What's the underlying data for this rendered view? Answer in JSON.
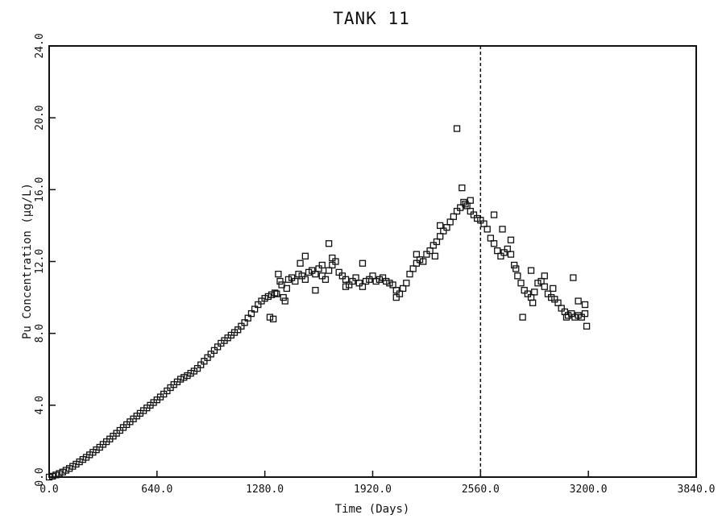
{
  "chart_data": {
    "type": "scatter",
    "title": "TANK 11",
    "xlabel": "Time (Days)",
    "ylabel": "Pu Concentration (µg/L)",
    "xlim": [
      0,
      3840
    ],
    "ylim": [
      0,
      24
    ],
    "x_ticks": [
      "0.0",
      "640.0",
      "1280.0",
      "1920.0",
      "2560.0",
      "3200.0",
      "3840.0"
    ],
    "y_ticks": [
      "0.0",
      "4.0",
      "8.0",
      "12.0",
      "16.0",
      "20.0",
      "24.0"
    ],
    "grid": false,
    "marker": "open-square",
    "reference_line": {
      "x": 2560,
      "style": "dashed"
    },
    "series": [
      {
        "points": [
          [
            0,
            0
          ],
          [
            20,
            0.05
          ],
          [
            40,
            0.12
          ],
          [
            60,
            0.2
          ],
          [
            80,
            0.28
          ],
          [
            100,
            0.38
          ],
          [
            120,
            0.48
          ],
          [
            140,
            0.6
          ],
          [
            160,
            0.72
          ],
          [
            180,
            0.85
          ],
          [
            200,
            0.98
          ],
          [
            220,
            1.1
          ],
          [
            240,
            1.24
          ],
          [
            260,
            1.38
          ],
          [
            280,
            1.52
          ],
          [
            300,
            1.66
          ],
          [
            320,
            1.82
          ],
          [
            340,
            1.97
          ],
          [
            360,
            2.12
          ],
          [
            380,
            2.28
          ],
          [
            400,
            2.44
          ],
          [
            420,
            2.6
          ],
          [
            440,
            2.76
          ],
          [
            460,
            2.92
          ],
          [
            480,
            3.08
          ],
          [
            500,
            3.24
          ],
          [
            520,
            3.4
          ],
          [
            540,
            3.55
          ],
          [
            560,
            3.7
          ],
          [
            580,
            3.85
          ],
          [
            600,
            4.0
          ],
          [
            620,
            4.15
          ],
          [
            640,
            4.3
          ],
          [
            660,
            4.46
          ],
          [
            680,
            4.62
          ],
          [
            700,
            4.8
          ],
          [
            720,
            4.98
          ],
          [
            740,
            5.15
          ],
          [
            760,
            5.3
          ],
          [
            780,
            5.45
          ],
          [
            800,
            5.55
          ],
          [
            820,
            5.65
          ],
          [
            840,
            5.78
          ],
          [
            860,
            5.9
          ],
          [
            880,
            6.05
          ],
          [
            900,
            6.25
          ],
          [
            920,
            6.45
          ],
          [
            940,
            6.65
          ],
          [
            960,
            6.85
          ],
          [
            980,
            7.05
          ],
          [
            1000,
            7.25
          ],
          [
            1020,
            7.45
          ],
          [
            1040,
            7.6
          ],
          [
            1060,
            7.75
          ],
          [
            1080,
            7.9
          ],
          [
            1100,
            8.05
          ],
          [
            1120,
            8.2
          ],
          [
            1140,
            8.4
          ],
          [
            1160,
            8.6
          ],
          [
            1180,
            8.85
          ],
          [
            1200,
            9.1
          ],
          [
            1220,
            9.35
          ],
          [
            1240,
            9.6
          ],
          [
            1260,
            9.8
          ],
          [
            1280,
            9.95
          ],
          [
            1300,
            10.05
          ],
          [
            1320,
            10.15
          ],
          [
            1340,
            10.25
          ],
          [
            1310,
            8.9
          ],
          [
            1330,
            8.8
          ],
          [
            1350,
            10.2
          ],
          [
            1360,
            11.3
          ],
          [
            1370,
            10.9
          ],
          [
            1380,
            10.7
          ],
          [
            1390,
            10.0
          ],
          [
            1400,
            9.8
          ],
          [
            1410,
            10.5
          ],
          [
            1420,
            11.0
          ],
          [
            1440,
            11.1
          ],
          [
            1460,
            10.9
          ],
          [
            1480,
            11.3
          ],
          [
            1500,
            11.2
          ],
          [
            1520,
            11.0
          ],
          [
            1540,
            11.4
          ],
          [
            1560,
            11.5
          ],
          [
            1580,
            11.3
          ],
          [
            1600,
            11.6
          ],
          [
            1620,
            11.2
          ],
          [
            1640,
            11.0
          ],
          [
            1660,
            11.5
          ],
          [
            1680,
            11.8
          ],
          [
            1700,
            12.0
          ],
          [
            1720,
            11.4
          ],
          [
            1740,
            11.2
          ],
          [
            1760,
            11.0
          ],
          [
            1780,
            10.7
          ],
          [
            1800,
            10.9
          ],
          [
            1820,
            11.1
          ],
          [
            1840,
            10.8
          ],
          [
            1860,
            10.6
          ],
          [
            1880,
            10.9
          ],
          [
            1900,
            11.0
          ],
          [
            1920,
            11.2
          ],
          [
            1940,
            10.9
          ],
          [
            1960,
            11.0
          ],
          [
            1980,
            11.1
          ],
          [
            2000,
            10.9
          ],
          [
            2020,
            10.8
          ],
          [
            2040,
            10.7
          ],
          [
            2060,
            10.4
          ],
          [
            2080,
            10.2
          ],
          [
            2100,
            10.5
          ],
          [
            2120,
            10.8
          ],
          [
            2140,
            11.3
          ],
          [
            2160,
            11.6
          ],
          [
            2180,
            11.9
          ],
          [
            2200,
            12.1
          ],
          [
            2220,
            12.0
          ],
          [
            2240,
            12.4
          ],
          [
            2260,
            12.6
          ],
          [
            2280,
            12.9
          ],
          [
            2300,
            13.1
          ],
          [
            2320,
            13.4
          ],
          [
            2340,
            13.7
          ],
          [
            2360,
            13.9
          ],
          [
            2380,
            14.2
          ],
          [
            2400,
            14.5
          ],
          [
            2420,
            14.8
          ],
          [
            2440,
            15.0
          ],
          [
            2460,
            15.3
          ],
          [
            2480,
            15.1
          ],
          [
            2500,
            14.8
          ],
          [
            2520,
            14.6
          ],
          [
            2540,
            14.4
          ],
          [
            2560,
            14.3
          ],
          [
            2580,
            14.1
          ],
          [
            2600,
            13.8
          ],
          [
            2620,
            13.3
          ],
          [
            2640,
            13.0
          ],
          [
            2660,
            12.6
          ],
          [
            2680,
            12.3
          ],
          [
            2700,
            12.5
          ],
          [
            2720,
            12.7
          ],
          [
            2740,
            12.4
          ],
          [
            2760,
            11.8
          ],
          [
            2780,
            11.2
          ],
          [
            2800,
            10.8
          ],
          [
            2820,
            10.4
          ],
          [
            2840,
            10.2
          ],
          [
            2860,
            10.0
          ],
          [
            2880,
            10.3
          ],
          [
            2900,
            10.8
          ],
          [
            2920,
            10.9
          ],
          [
            2940,
            10.6
          ],
          [
            2960,
            10.2
          ],
          [
            2980,
            10.0
          ],
          [
            3000,
            9.9
          ],
          [
            3020,
            9.7
          ],
          [
            3040,
            9.4
          ],
          [
            3060,
            9.2
          ],
          [
            3080,
            9.0
          ],
          [
            3100,
            9.1
          ],
          [
            3120,
            8.9
          ],
          [
            3140,
            9.0
          ],
          [
            3160,
            8.9
          ],
          [
            3180,
            9.1
          ],
          [
            1490,
            11.9
          ],
          [
            1520,
            12.3
          ],
          [
            1620,
            11.8
          ],
          [
            1660,
            13.0
          ],
          [
            1680,
            12.2
          ],
          [
            1580,
            10.4
          ],
          [
            1760,
            10.6
          ],
          [
            1860,
            11.9
          ],
          [
            2060,
            10.0
          ],
          [
            2180,
            12.4
          ],
          [
            2290,
            12.3
          ],
          [
            2320,
            14.0
          ],
          [
            2420,
            19.4
          ],
          [
            2450,
            16.1
          ],
          [
            2470,
            15.2
          ],
          [
            2500,
            15.4
          ],
          [
            2640,
            14.6
          ],
          [
            2690,
            13.8
          ],
          [
            2740,
            13.2
          ],
          [
            2770,
            11.6
          ],
          [
            2810,
            8.9
          ],
          [
            2860,
            11.5
          ],
          [
            2870,
            9.7
          ],
          [
            2940,
            11.2
          ],
          [
            2990,
            10.5
          ],
          [
            3070,
            8.9
          ],
          [
            3110,
            11.1
          ],
          [
            3140,
            9.8
          ],
          [
            3190,
            8.4
          ],
          [
            3180,
            9.6
          ]
        ]
      }
    ]
  }
}
